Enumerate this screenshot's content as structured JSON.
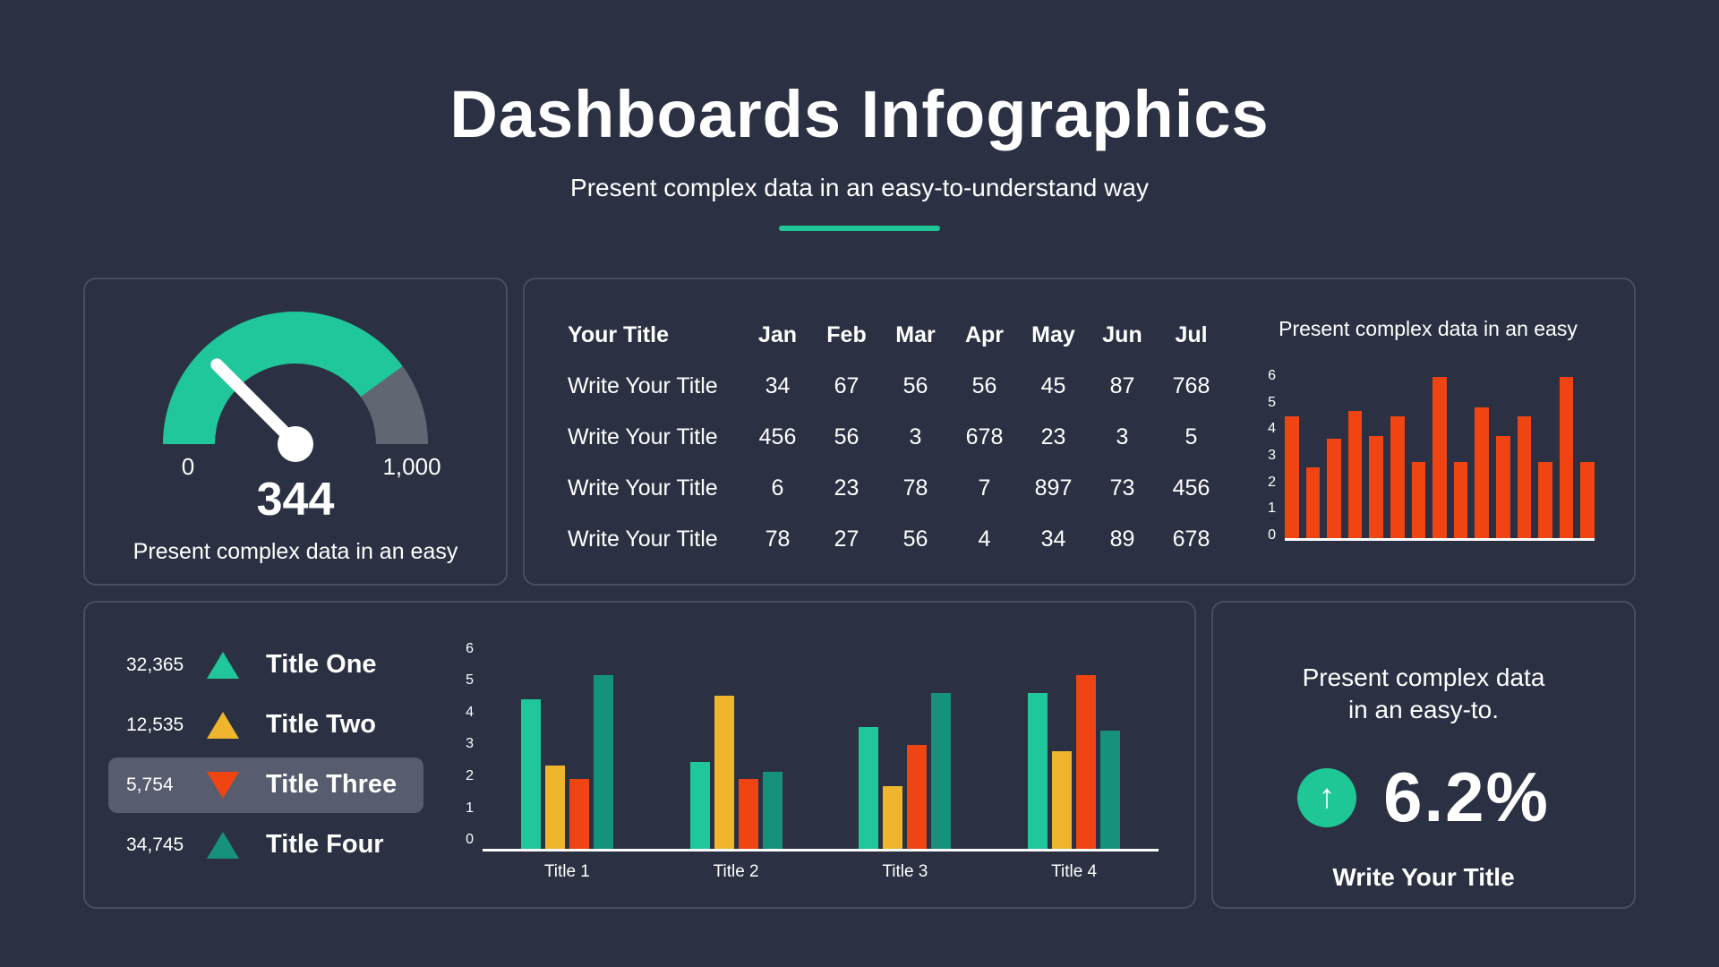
{
  "header": {
    "title": "Dashboards Infographics",
    "subtitle": "Present complex data in an easy-to-understand way"
  },
  "colors": {
    "background": "#2B3143",
    "card_border": "#474E60",
    "accent_teal": "#1FC796",
    "emerald": "#1FC79B",
    "amber": "#EFB52D",
    "orange_red": "#F04412",
    "sea_green": "#16917A",
    "gauge_gray": "#606672",
    "highlight_row": "#575D6E",
    "text": "#FFFFFF"
  },
  "gauge_card": {
    "min_label": "0",
    "max_label": "1,000",
    "value": "344",
    "caption": "Present complex data in an easy"
  },
  "kpi_card": {
    "line1": "Present complex data",
    "line2": "in an easy-to.",
    "arrow_icon": "↑",
    "percent": "6.2%",
    "title": "Write Your Title"
  },
  "legend_card": {
    "items": [
      {
        "value": "32,365",
        "direction": "up",
        "color": "#1FC79B",
        "label": "Title One",
        "highlighted": false
      },
      {
        "value": "12,535",
        "direction": "up",
        "color": "#EFB52D",
        "label": "Title Two",
        "highlighted": false
      },
      {
        "value": "5,754",
        "direction": "down",
        "color": "#F04412",
        "label": "Title Three",
        "highlighted": true
      },
      {
        "value": "34,745",
        "direction": "up",
        "color": "#16917A",
        "label": "Title Four",
        "highlighted": false
      }
    ]
  },
  "chart_data": [
    {
      "id": "gauge",
      "type": "gauge",
      "title": "",
      "min": 0,
      "max": 1000,
      "value": 344,
      "min_label": "0",
      "max_label": "1,000",
      "green_fraction": 0.8,
      "needle_fraction": 0.25,
      "caption": "Present complex data in an easy",
      "arc_colors": {
        "filled": "#1FC79B",
        "rest": "#606672"
      }
    },
    {
      "id": "monthly-table",
      "type": "table",
      "columns": [
        "Your Title",
        "Jan",
        "Feb",
        "Mar",
        "Apr",
        "May",
        "Jun",
        "Jul"
      ],
      "rows": [
        {
          "label": "Write Your Title",
          "values": [
            34,
            67,
            56,
            56,
            45,
            87,
            768
          ]
        },
        {
          "label": "Write Your Title",
          "values": [
            456,
            56,
            3,
            678,
            23,
            3,
            5
          ]
        },
        {
          "label": "Write Your Title",
          "values": [
            6,
            23,
            78,
            7,
            897,
            73,
            456
          ]
        },
        {
          "label": "Write Your Title",
          "values": [
            78,
            27,
            56,
            4,
            34,
            89,
            678
          ]
        }
      ]
    },
    {
      "id": "mini-bars",
      "type": "bar",
      "title": "Present complex data in an easy",
      "values": [
        4.3,
        2.5,
        3.5,
        4.5,
        3.6,
        4.3,
        2.7,
        5.7,
        2.7,
        4.6,
        3.6,
        4.3,
        2.7,
        5.7,
        2.7
      ],
      "bar_color": "#F04412",
      "ylim": [
        0,
        6
      ],
      "yticks": [
        0,
        1,
        2,
        3,
        4,
        5,
        6
      ],
      "grid": false,
      "x_labels": []
    },
    {
      "id": "grouped-bars",
      "type": "bar",
      "title": "",
      "categories": [
        "Title 1",
        "Title 2",
        "Title 3",
        "Title 4"
      ],
      "series": [
        {
          "name": "Title One",
          "color": "#1FC79B",
          "values": [
            4.3,
            2.5,
            3.5,
            4.5
          ]
        },
        {
          "name": "Title Two",
          "color": "#EFB52D",
          "values": [
            2.4,
            4.4,
            1.8,
            2.8
          ]
        },
        {
          "name": "Title Three",
          "color": "#F04412",
          "values": [
            2.0,
            2.0,
            3.0,
            5.0
          ]
        },
        {
          "name": "Title Four",
          "color": "#16917A",
          "values": [
            5.0,
            2.2,
            4.5,
            3.4
          ]
        }
      ],
      "ylim": [
        0,
        6
      ],
      "yticks": [
        0,
        1,
        2,
        3,
        4,
        5,
        6
      ],
      "grid": false,
      "legend_position": "left"
    }
  ]
}
